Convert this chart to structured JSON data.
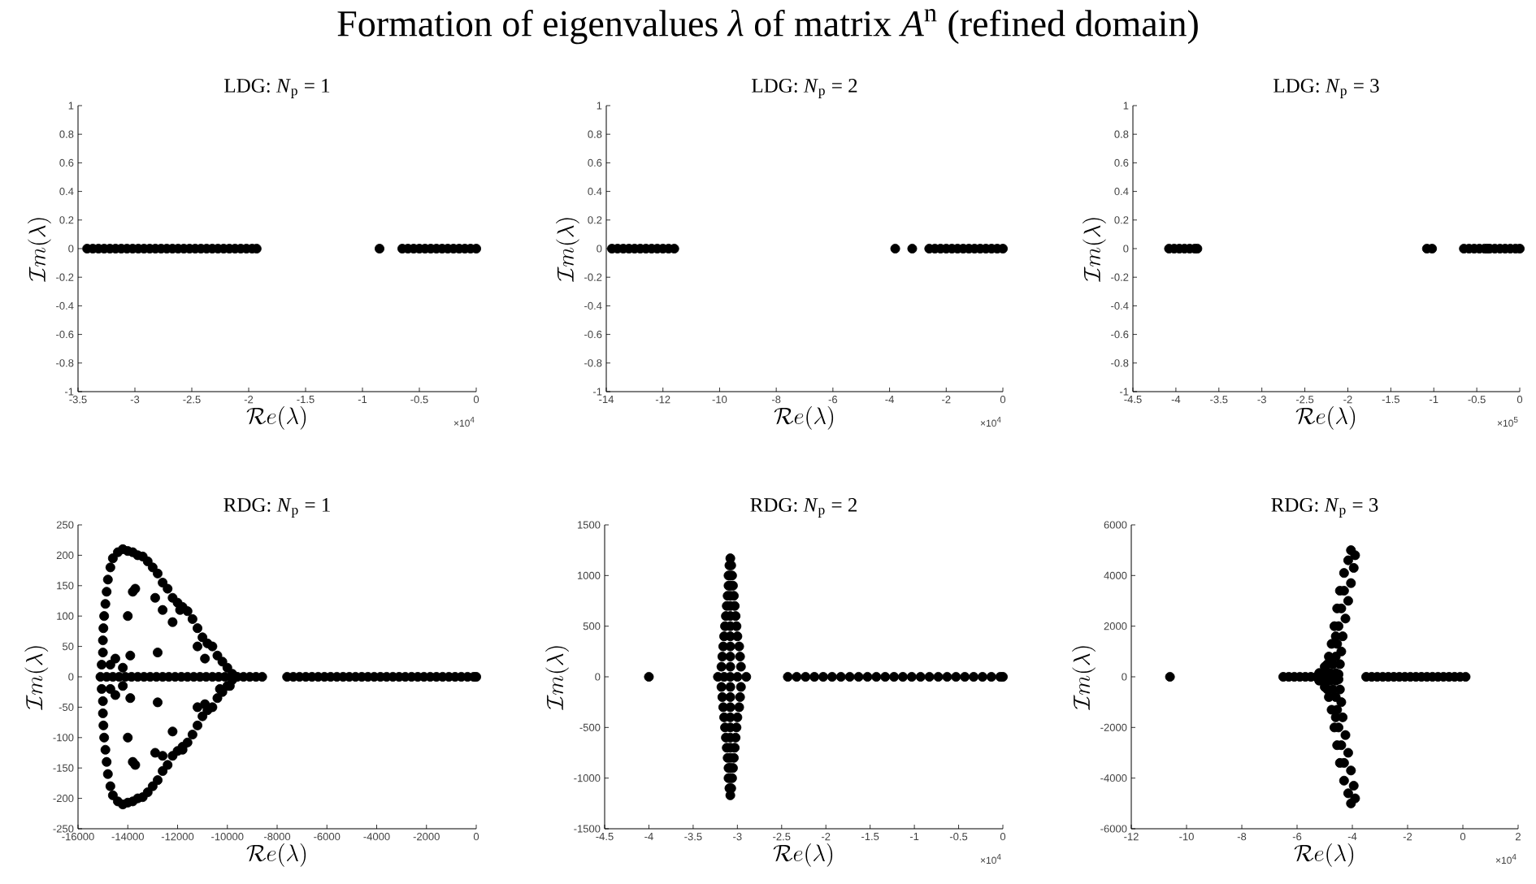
{
  "chart_data": [
    {
      "type": "scatter",
      "title": "LDG: *N*$_{p}$ = 1",
      "xlabel": "\\mathcal{R}e(\\lambda)",
      "ylabel": "\\mathcal{I}m(\\lambda)",
      "color": "#000000",
      "annotations": [
        "Formation of eigenvalues *λ* of matrix *A*$^{n}$ (refined domain)",
        "×10$^{4}$"
      ],
      "xlim": [
        -3.5,
        0
      ],
      "ylim": [
        -1,
        1
      ],
      "xticks": [
        -3.5,
        -3,
        -2.5,
        -2,
        -1.5,
        -1,
        -0.5,
        0
      ],
      "yticks": [
        -1,
        -0.8,
        -0.6,
        -0.4,
        -0.2,
        0,
        0.2,
        0.4,
        0.6,
        0.8,
        1
      ],
      "x": [
        -3.42,
        -3.37,
        -3.32,
        -3.27,
        -3.22,
        -3.17,
        -3.12,
        -3.07,
        -3.02,
        -2.97,
        -2.92,
        -2.87,
        -2.82,
        -2.77,
        -2.72,
        -2.67,
        -2.62,
        -2.57,
        -2.52,
        -2.47,
        -2.42,
        -2.37,
        -2.32,
        -2.27,
        -2.22,
        -2.17,
        -2.12,
        -2.07,
        -2.02,
        -1.97,
        -1.93,
        -0.85,
        -0.65,
        -0.6,
        -0.55,
        -0.5,
        -0.45,
        -0.4,
        -0.35,
        -0.3,
        -0.25,
        -0.2,
        -0.15,
        -0.1,
        -0.05,
        0
      ],
      "values": [
        0,
        0,
        0,
        0,
        0,
        0,
        0,
        0,
        0,
        0,
        0,
        0,
        0,
        0,
        0,
        0,
        0,
        0,
        0,
        0,
        0,
        0,
        0,
        0,
        0,
        0,
        0,
        0,
        0,
        0,
        0,
        0,
        0,
        0,
        0,
        0,
        0,
        0,
        0,
        0,
        0,
        0,
        0,
        0,
        0,
        0
      ]
    },
    {
      "type": "scatter",
      "title": "LDG: *N*$_{p}$ = 2",
      "xlabel": "\\mathcal{R}e(\\lambda)",
      "ylabel": "\\mathcal{I}m(\\lambda)",
      "color": "#000000",
      "annotations": [
        "×10$^{4}$"
      ],
      "xlim": [
        -14,
        0
      ],
      "ylim": [
        -1,
        1
      ],
      "xticks": [
        -14,
        -12,
        -10,
        -8,
        -6,
        -4,
        -2,
        0
      ],
      "yticks": [
        -1,
        -0.8,
        -0.6,
        -0.4,
        -0.2,
        0,
        0.2,
        0.4,
        0.6,
        0.8,
        1
      ],
      "x": [
        -13.8,
        -13.6,
        -13.4,
        -13.2,
        -13,
        -12.8,
        -12.6,
        -12.4,
        -12.2,
        -12,
        -11.8,
        -11.6,
        -3.8,
        -3.2,
        -2.6,
        -2.4,
        -2.2,
        -2,
        -1.8,
        -1.6,
        -1.4,
        -1.2,
        -1,
        -0.8,
        -0.6,
        -0.4,
        -0.2,
        0
      ],
      "values": [
        0,
        0,
        0,
        0,
        0,
        0,
        0,
        0,
        0,
        0,
        0,
        0,
        0,
        0,
        0,
        0,
        0,
        0,
        0,
        0,
        0,
        0,
        0,
        0,
        0,
        0,
        0,
        0
      ]
    },
    {
      "type": "scatter",
      "title": "LDG: *N*$_{p}$ = 3",
      "xlabel": "\\mathcal{R}e(\\lambda)",
      "ylabel": "\\mathcal{I}m(\\lambda)",
      "color": "#000000",
      "annotations": [
        "×10$^{5}$"
      ],
      "xlim": [
        -4.5,
        0
      ],
      "ylim": [
        -1,
        1
      ],
      "xticks": [
        -4.5,
        -4,
        -3.5,
        -3,
        -2.5,
        -2,
        -1.5,
        -1,
        -0.5,
        0
      ],
      "yticks": [
        -1,
        -0.8,
        -0.6,
        -0.4,
        -0.2,
        0,
        0.2,
        0.4,
        0.6,
        0.8,
        1
      ],
      "x": [
        -4.08,
        -4.02,
        -3.96,
        -3.9,
        -3.84,
        -3.78,
        -3.75,
        -1.08,
        -1.02,
        -0.65,
        -0.59,
        -0.53,
        -0.47,
        -0.41,
        -0.38,
        -0.35,
        -0.29,
        -0.23,
        -0.17,
        -0.11,
        -0.05,
        0
      ],
      "values": [
        0,
        0,
        0,
        0,
        0,
        0,
        0,
        0,
        0,
        0,
        0,
        0,
        0,
        0,
        0,
        0,
        0,
        0,
        0,
        0,
        0,
        0
      ]
    },
    {
      "type": "scatter",
      "title": "RDG: *N*$_{p}$ = 1",
      "xlabel": "\\mathcal{R}e(\\lambda)",
      "ylabel": "\\mathcal{I}m(\\lambda)",
      "color": "#000000",
      "xlim": [
        -16000,
        0
      ],
      "ylim": [
        -250,
        250
      ],
      "xticks": [
        -16000,
        -14000,
        -12000,
        -10000,
        -8000,
        -6000,
        -4000,
        -2000,
        0
      ],
      "yticks": [
        -250,
        -200,
        -150,
        -100,
        -50,
        0,
        50,
        100,
        150,
        200,
        250
      ],
      "x": [
        -15100,
        -14850,
        -14600,
        -14350,
        -14100,
        -13850,
        -13600,
        -13350,
        -13100,
        -12850,
        -12600,
        -12350,
        -12100,
        -11850,
        -11600,
        -11350,
        -11100,
        -10850,
        -10600,
        -10350,
        -10100,
        -9600,
        -9350,
        -9100,
        -8850,
        -8600,
        -7600,
        -7350,
        -7100,
        -6850,
        -6600,
        -6350,
        -6100,
        -5850,
        -5600,
        -5350,
        -5100,
        -4850,
        -4600,
        -4350,
        -4100,
        -3850,
        -3600,
        -3350,
        -3100,
        -2850,
        -2600,
        -2350,
        -2100,
        -1850,
        -1600,
        -1350,
        -1100,
        -850,
        -600,
        -350,
        -100,
        0,
        -15050,
        -15000,
        -15000,
        -14980,
        -14950,
        -14900,
        -14850,
        -14800,
        -14700,
        -14600,
        -14400,
        -14200,
        -14000,
        -13800,
        -13600,
        -13400,
        -13200,
        -13000,
        -12800,
        -12600,
        -12400,
        -12200,
        -12000,
        -11800,
        -11600,
        -11400,
        -11200,
        -11000,
        -10800,
        -10600,
        -10400,
        -10200,
        -10000,
        -9800,
        -15050,
        -15000,
        -15000,
        -14980,
        -14950,
        -14900,
        -14850,
        -14800,
        -14700,
        -14600,
        -14400,
        -14200,
        -14000,
        -13800,
        -13600,
        -13400,
        -13200,
        -13000,
        -12800,
        -12600,
        -12400,
        -12200,
        -12000,
        -11800,
        -11600,
        -11400,
        -11200,
        -11000,
        -10800,
        -10600,
        -10400,
        -10200,
        -10000,
        -9800,
        -13700,
        -13800,
        -14000,
        -12900,
        -12600,
        -12200,
        -11900,
        -11200,
        -12800,
        -14500,
        -14700,
        -14200,
        -13900,
        -10900,
        -13700,
        -13800,
        -14000,
        -12900,
        -12600,
        -12200,
        -11800,
        -11200,
        -12800,
        -14500,
        -14700,
        -14200,
        -13900,
        -10900,
        -10300,
        -9900
      ],
      "values": [
        0,
        0,
        0,
        0,
        0,
        0,
        0,
        0,
        0,
        0,
        0,
        0,
        0,
        0,
        0,
        0,
        0,
        0,
        0,
        0,
        0,
        0,
        0,
        0,
        0,
        0,
        0,
        0,
        0,
        0,
        0,
        0,
        0,
        0,
        0,
        0,
        0,
        0,
        0,
        0,
        0,
        0,
        0,
        0,
        0,
        0,
        0,
        0,
        0,
        0,
        0,
        0,
        0,
        0,
        0,
        0,
        0,
        0,
        20,
        40,
        60,
        80,
        100,
        120,
        140,
        160,
        180,
        195,
        205,
        210,
        207,
        205,
        200,
        198,
        190,
        180,
        170,
        155,
        145,
        130,
        122,
        115,
        108,
        95,
        80,
        65,
        55,
        50,
        35,
        25,
        15,
        5,
        -20,
        -40,
        -60,
        -80,
        -100,
        -120,
        -140,
        -160,
        -180,
        -195,
        -205,
        -210,
        -207,
        -205,
        -200,
        -198,
        -190,
        -180,
        -170,
        -155,
        -145,
        -130,
        -122,
        -115,
        -108,
        -95,
        -80,
        -65,
        -55,
        -50,
        -35,
        -25,
        -15,
        -5,
        145,
        140,
        100,
        130,
        110,
        90,
        110,
        50,
        40,
        30,
        20,
        15,
        35,
        30,
        -145,
        -140,
        -100,
        -125,
        -130,
        -90,
        -120,
        -50,
        -42,
        -30,
        -20,
        -15,
        -35,
        -45,
        -20,
        -15
      ]
    },
    {
      "type": "scatter",
      "title": "RDG: *N*$_{p}$ = 2",
      "xlabel": "\\mathcal{R}e(\\lambda)",
      "ylabel": "\\mathcal{I}m(\\lambda)",
      "color": "#000000",
      "annotations": [
        "×10$^{4}$"
      ],
      "xlim": [
        -4.5,
        0
      ],
      "ylim": [
        -1500,
        1500
      ],
      "xticks": [
        -4.5,
        -4,
        -3.5,
        -3,
        -2.5,
        -2,
        -1.5,
        -1,
        -0.5,
        0
      ],
      "yticks": [
        -1500,
        -1000,
        -500,
        0,
        500,
        1000,
        1500
      ],
      "x": [
        -4.0,
        -2.43,
        -2.33,
        -2.23,
        -2.13,
        -2.03,
        -1.93,
        -1.83,
        -1.73,
        -1.63,
        -1.53,
        -1.43,
        -1.33,
        -1.23,
        -1.13,
        -1.03,
        -0.93,
        -0.83,
        -0.73,
        -0.63,
        -0.53,
        -0.43,
        -0.33,
        -0.23,
        -0.13,
        -0.03,
        0,
        -3.22,
        -3.15,
        -3.08,
        -3.0,
        -2.9,
        -3.18,
        -3.08,
        -2.96,
        -3.17,
        -3.08,
        -2.97,
        -3.16,
        -3.08,
        -2.98,
        -3.15,
        -3.08,
        -3.0,
        -3.14,
        -3.08,
        -3.01,
        -3.13,
        -3.08,
        -3.02,
        -3.12,
        -3.08,
        -3.03,
        -3.11,
        -3.08,
        -3.04,
        -3.1,
        -3.08,
        -3.05,
        -3.1,
        -3.08,
        -3.06,
        -3.09,
        -3.07,
        -3.18,
        -3.08,
        -2.96,
        -3.17,
        -3.08,
        -2.97,
        -3.16,
        -3.08,
        -2.98,
        -3.15,
        -3.08,
        -3.0,
        -3.14,
        -3.08,
        -3.01,
        -3.13,
        -3.08,
        -3.02,
        -3.12,
        -3.08,
        -3.03,
        -3.11,
        -3.08,
        -3.04,
        -3.1,
        -3.08,
        -3.05,
        -3.1,
        -3.08,
        -3.06,
        -3.09,
        -3.07,
        -3.08,
        -3.08
      ],
      "values": [
        0,
        0,
        0,
        0,
        0,
        0,
        0,
        0,
        0,
        0,
        0,
        0,
        0,
        0,
        0,
        0,
        0,
        0,
        0,
        0,
        0,
        0,
        0,
        0,
        0,
        0,
        0,
        0,
        0,
        0,
        0,
        0,
        100,
        100,
        100,
        200,
        200,
        200,
        300,
        300,
        300,
        400,
        400,
        400,
        500,
        500,
        500,
        600,
        600,
        600,
        700,
        700,
        700,
        800,
        800,
        800,
        900,
        900,
        900,
        1000,
        1000,
        1000,
        1100,
        1100,
        -100,
        -100,
        -100,
        -200,
        -200,
        -200,
        -300,
        -300,
        -300,
        -400,
        -400,
        -400,
        -500,
        -500,
        -500,
        -600,
        -600,
        -600,
        -700,
        -700,
        -700,
        -800,
        -800,
        -800,
        -900,
        -900,
        -900,
        -1000,
        -1000,
        -1000,
        -1100,
        -1100,
        1170,
        -1170
      ]
    },
    {
      "type": "scatter",
      "title": "RDG: *N*$_{p}$ = 3",
      "xlabel": "\\mathcal{R}e(\\lambda)",
      "ylabel": "\\mathcal{I}m(\\lambda)",
      "color": "#000000",
      "annotations": [
        "×10$^{4}$"
      ],
      "xlim": [
        -12,
        2
      ],
      "ylim": [
        -6000,
        6000
      ],
      "xticks": [
        -12,
        -10,
        -8,
        -6,
        -4,
        -2,
        0,
        2
      ],
      "yticks": [
        -6000,
        -4000,
        -2000,
        0,
        2000,
        4000,
        6000
      ],
      "x": [
        -10.6,
        -6.5,
        -6.3,
        -6.1,
        -5.9,
        -5.7,
        -5.5,
        -5.3,
        -3.5,
        -3.3,
        -3.1,
        -2.9,
        -2.7,
        -2.5,
        -2.3,
        -2.1,
        -1.9,
        -1.7,
        -1.5,
        -1.3,
        -1.1,
        -0.9,
        -0.7,
        -0.5,
        -0.3,
        -0.1,
        0.1,
        -5.2,
        -5.0,
        -4.85,
        -4.75,
        -4.65,
        -4.55,
        -4.45,
        -4.3,
        -4.15,
        -4.05,
        -4.5,
        -4.45,
        -4.4,
        -4.35,
        -4.25,
        -4.15,
        -4.05,
        -3.95,
        -3.9,
        -5.0,
        -4.8,
        -4.6,
        -4.9,
        -4.7,
        -4.6,
        -4.55,
        -4.6,
        -4.5,
        -4.4,
        -4.3,
        -5.2,
        -5.0,
        -4.85,
        -4.75,
        -4.65,
        -4.55,
        -4.45,
        -4.3,
        -4.15,
        -4.05,
        -4.5,
        -4.45,
        -4.4,
        -4.35,
        -4.25,
        -4.15,
        -4.05,
        -3.95,
        -3.9,
        -5.0,
        -4.8,
        -4.6,
        -4.9,
        -4.7,
        -4.6,
        -4.55,
        -4.6,
        -4.5,
        -4.4,
        -4.3
      ],
      "values": [
        0,
        0,
        0,
        0,
        0,
        0,
        0,
        0,
        0,
        0,
        0,
        0,
        0,
        0,
        0,
        0,
        0,
        0,
        0,
        0,
        0,
        0,
        0,
        0,
        0,
        0,
        0,
        150,
        400,
        800,
        1300,
        2000,
        2700,
        3400,
        4100,
        4600,
        5000,
        100,
        500,
        1000,
        1600,
        2300,
        3000,
        3700,
        4300,
        4800,
        150,
        150,
        150,
        500,
        500,
        800,
        1300,
        1600,
        2000,
        2700,
        3400,
        -150,
        -400,
        -800,
        -1300,
        -2000,
        -2700,
        -3400,
        -4100,
        -4600,
        -5000,
        -100,
        -500,
        -1000,
        -1600,
        -2300,
        -3000,
        -3700,
        -4300,
        -4800,
        -150,
        -150,
        -150,
        -500,
        -500,
        -800,
        -1300,
        -1600,
        -2000,
        -2700,
        -3400
      ]
    }
  ]
}
